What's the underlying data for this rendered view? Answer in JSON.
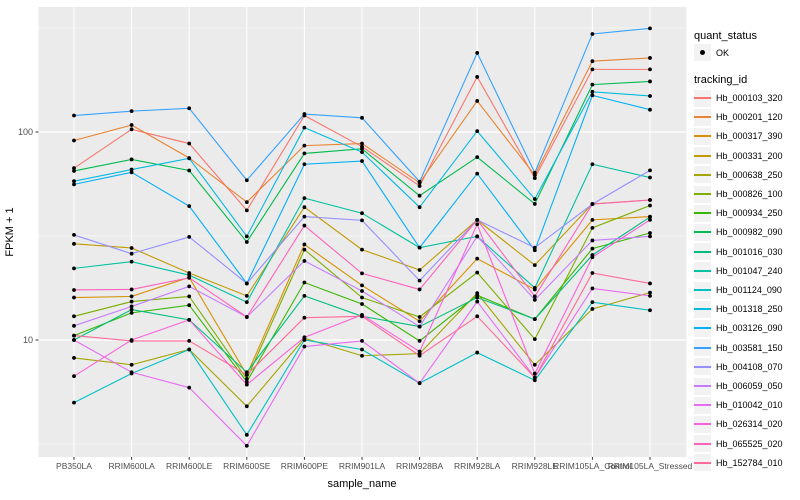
{
  "axes": {
    "y_title": "FPKM + 1",
    "x_title": "sample_name",
    "y_tick_labels": [
      {
        "label": "100",
        "value": 100
      },
      {
        "label": "10",
        "value": 10
      }
    ]
  },
  "legend": {
    "quant_status_title": "quant_status",
    "ok_label": "OK",
    "tracking_title": "tracking_id"
  },
  "style": {
    "panel_bg": "#EBEBEB",
    "grid_color": "#FFFFFF",
    "point_color": "#000000",
    "tick_color": "#333333",
    "axis_text_color": "#4D4D4D",
    "legend_key_bg": "#F2F2F2"
  },
  "chart_data": {
    "type": "line",
    "title": "",
    "xlabel": "sample_name",
    "ylabel": "FPKM + 1",
    "yscale": "log10",
    "ylim": [
      3,
      330
    ],
    "yticks": [
      10,
      100
    ],
    "grid": true,
    "legend_position": "right",
    "quant_status": "OK",
    "categories": [
      "PB350LA",
      "RRIM600LA",
      "RRIM600LE",
      "RRIM600SE",
      "RRIM600PE",
      "RRIM901LA",
      "RRIM928BA",
      "RRIM928LA",
      "RRIM928LE",
      "RRIM105LA_Control",
      "RRIM105LA_Stressed"
    ],
    "series": [
      {
        "name": "Hb_000103_320",
        "color": "#F8766D",
        "values": [
          67,
          103,
          88,
          42,
          120,
          85,
          55,
          184,
          60,
          200,
          200
        ]
      },
      {
        "name": "Hb_000201_120",
        "color": "#EA8331",
        "values": [
          91,
          108,
          75,
          46,
          86,
          88,
          57,
          141,
          62,
          219,
          227
        ]
      },
      {
        "name": "Hb_000317_390",
        "color": "#D89000",
        "values": [
          16,
          16.2,
          20,
          6.8,
          28.8,
          18.3,
          12.3,
          24.6,
          17.5,
          37.8,
          39.2
        ]
      },
      {
        "name": "Hb_000331_200",
        "color": "#C09B00",
        "values": [
          29,
          27.7,
          21,
          16.3,
          43.5,
          27.2,
          21.7,
          37.8,
          22.9,
          45.1,
          47.1
        ]
      },
      {
        "name": "Hb_000638_250",
        "color": "#A3A500",
        "values": [
          8.2,
          7.6,
          9,
          4.8,
          10.2,
          8.4,
          8.6,
          16.8,
          7.6,
          14.1,
          16.9
        ]
      },
      {
        "name": "Hb_000826_100",
        "color": "#7CAE00",
        "values": [
          13,
          15.3,
          16.2,
          6.5,
          27.2,
          16,
          12.9,
          21.1,
          10.1,
          34.6,
          44.3
        ]
      },
      {
        "name": "Hb_000934_250",
        "color": "#39B600",
        "values": [
          10.5,
          13.5,
          14.7,
          6.3,
          18.9,
          14.9,
          9.9,
          16.4,
          12.6,
          27.5,
          32.7
        ]
      },
      {
        "name": "Hb_000982_090",
        "color": "#00BB4E",
        "values": [
          65,
          73.8,
          65.3,
          29.6,
          78.9,
          83,
          49.4,
          75.7,
          45.1,
          169,
          175
        ]
      },
      {
        "name": "Hb_001016_030",
        "color": "#00BF7D",
        "values": [
          10,
          14,
          12.5,
          7,
          16.3,
          13,
          11.6,
          16,
          12.6,
          25.6,
          39
        ]
      },
      {
        "name": "Hb_001047_240",
        "color": "#00C1A3",
        "values": [
          22.1,
          23.8,
          20.5,
          15.2,
          48.1,
          40.7,
          27.8,
          31.5,
          17.8,
          70,
          60.4
        ]
      },
      {
        "name": "Hb_001124_090",
        "color": "#00BFC4",
        "values": [
          5,
          6.9,
          9,
          3.5,
          10,
          9,
          6.2,
          8.7,
          6.4,
          15.2,
          13.9
        ]
      },
      {
        "name": "Hb_001318_250",
        "color": "#00BAE0",
        "values": [
          58,
          66,
          74.7,
          31.5,
          105,
          80,
          43.5,
          101,
          47.6,
          156,
          149
        ]
      },
      {
        "name": "Hb_003126_090",
        "color": "#00B0F6",
        "values": [
          56,
          64,
          44,
          18.7,
          70,
          72.5,
          27.8,
          63.1,
          27,
          150,
          128
        ]
      },
      {
        "name": "Hb_003581_150",
        "color": "#35A2FF",
        "values": [
          120,
          126,
          130,
          58.6,
          122,
          117,
          57.7,
          240,
          63.7,
          296,
          315
        ]
      },
      {
        "name": "Hb_004108_070",
        "color": "#9590FF",
        "values": [
          32,
          26,
          31.3,
          18.7,
          39.2,
          37.6,
          19.3,
          37.8,
          27.8,
          45,
          65.4
        ]
      },
      {
        "name": "Hb_006059_050",
        "color": "#C77CFF",
        "values": [
          11.7,
          14.5,
          18.1,
          12.9,
          24,
          17.2,
          11.6,
          31.5,
          15.6,
          30.1,
          31.5
        ]
      },
      {
        "name": "Hb_010042_010",
        "color": "#E76BF3",
        "values": [
          10,
          7,
          5.9,
          3.1,
          9.3,
          9.9,
          6.2,
          15.3,
          6.6,
          17.7,
          16.3
        ]
      },
      {
        "name": "Hb_026314_020",
        "color": "#FA62DB",
        "values": [
          6.7,
          10,
          12.5,
          6.1,
          10.3,
          13.2,
          8.8,
          36,
          6.9,
          25,
          37.8
        ]
      },
      {
        "name": "Hb_065525_020",
        "color": "#FF62BC",
        "values": [
          17.4,
          17.5,
          19.9,
          12.9,
          35.5,
          20.9,
          17.5,
          37.8,
          16.2,
          45,
          47.1
        ]
      },
      {
        "name": "Hb_152784_010",
        "color": "#FF6A98",
        "values": [
          10.5,
          9.9,
          9.9,
          6.8,
          12.8,
          13,
          8.4,
          13,
          6.6,
          21,
          18.7
        ]
      }
    ]
  }
}
